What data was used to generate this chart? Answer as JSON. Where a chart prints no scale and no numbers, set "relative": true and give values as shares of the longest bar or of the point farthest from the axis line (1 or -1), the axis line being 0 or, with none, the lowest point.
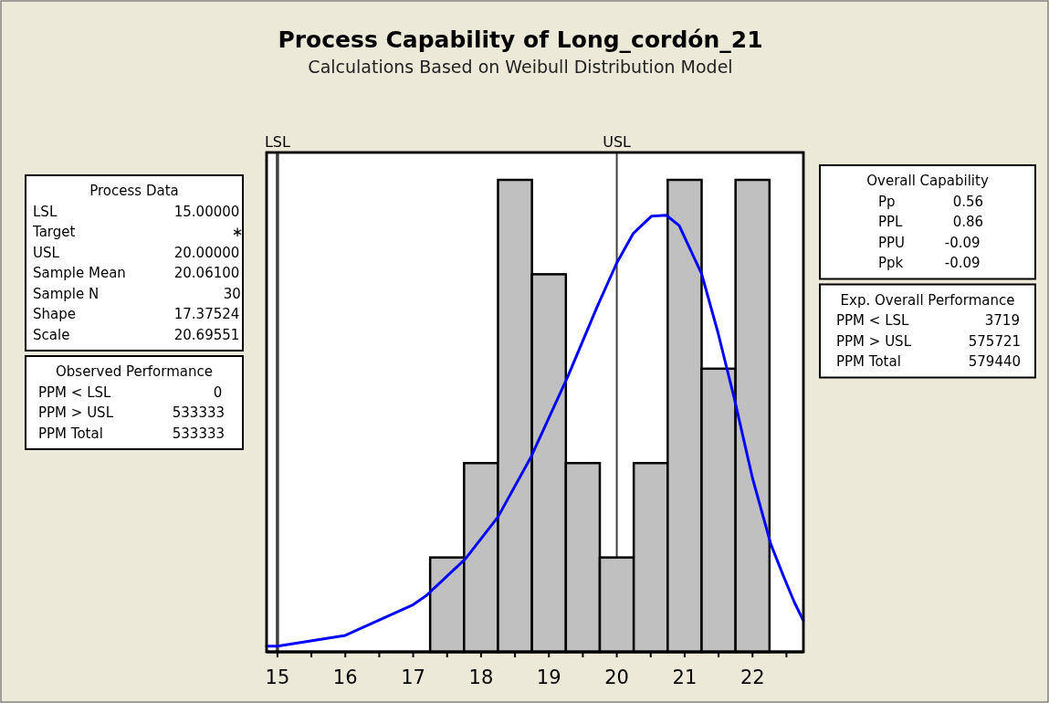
{
  "chart_data": {
    "type": "histogram",
    "title": "Process Capability of Long_cordón_21",
    "subtitle": "Calculations Based on Weibull Distribution Model",
    "relative": true,
    "bins": [
      17.25,
      17.75,
      18.25,
      18.75,
      19.25,
      19.75,
      20.25,
      20.75,
      21.25,
      21.75,
      22.25
    ],
    "values": [
      0.2,
      0.4,
      1,
      0.8,
      0.4,
      0.2,
      0.4,
      1,
      0.6,
      1
    ],
    "color": "#c0c0c0",
    "series": [
      {
        "type": "line",
        "color": "#0000ff",
        "x": [
          14.84,
          15,
          16,
          17,
          17.2,
          17.77,
          18.25,
          18.74,
          19.28,
          19.71,
          20,
          20.24,
          20.51,
          20.73,
          20.92,
          21.25,
          21.49,
          21.73,
          22,
          22.27,
          22.46,
          22.62,
          22.75
        ],
        "values": [
          0.012,
          0.012,
          0.035,
          0.1,
          0.12,
          0.197,
          0.286,
          0.414,
          0.584,
          0.731,
          0.824,
          0.886,
          0.923,
          0.925,
          0.903,
          0.801,
          0.677,
          0.538,
          0.368,
          0.228,
          0.159,
          0.104,
          0.066
        ]
      }
    ],
    "xlim": [
      14.84,
      22.75
    ],
    "xticks": [
      15,
      {
        "value": 15.5,
        "label": null
      },
      16,
      {
        "value": 16.5,
        "label": null
      },
      17,
      {
        "value": 17.5,
        "label": null
      },
      18,
      {
        "value": 18.5,
        "label": null
      },
      19,
      {
        "value": 19.5,
        "label": null
      },
      20,
      {
        "value": 20.5,
        "label": null
      },
      21,
      {
        "value": 21.5,
        "label": null
      },
      22,
      {
        "value": 22.5,
        "label": null
      }
    ],
    "ref_lines": [
      {
        "axis": "x",
        "value": 15,
        "label": "LSL",
        "color": "#404040"
      },
      {
        "axis": "x",
        "value": 20,
        "label": "USL",
        "color": "#404040"
      }
    ],
    "grid": false,
    "annotations": [
      "Process Data",
      "LSL\t15.00000",
      "Target\t∗",
      "USL\t20.00000",
      "Sample Mean\t20.06100",
      "Sample N\t30",
      "Shape\t17.37524",
      "Scale\t20.69551",
      "Observed Performance",
      "PPM < LSL\t0",
      "PPM > USL\t533333",
      "PPM Total\t533333",
      "Overall Capability",
      "Pp\t0.56",
      "PPL\t0.86",
      "PPU\t-0.09",
      "Ppk\t-0.09",
      "Exp. Overall Performance",
      "PPM < LSL\t3719",
      "PPM > USL\t575721",
      "PPM Total\t579440"
    ]
  }
}
